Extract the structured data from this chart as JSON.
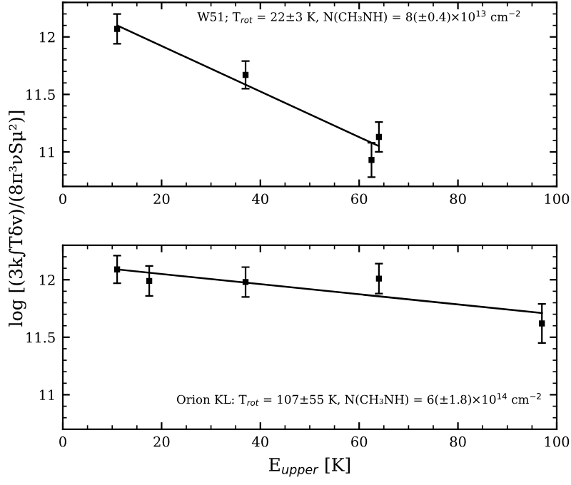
{
  "chart_data": [
    {
      "type": "scatter",
      "ylabel": "log [(3k∫Tδv)/(8π³νSμ²)]",
      "annotations": [
        "W51; T$_{rot}$ = 22±3 K, N(CH₃NH) = 8(±0.4)×10$^{13}$ cm$^{−2}$"
      ],
      "xlim": [
        0,
        100
      ],
      "xticks": [
        0,
        20,
        40,
        60,
        80,
        100
      ],
      "ylim": [
        10.7,
        12.3
      ],
      "yticks": [
        11,
        11.5,
        12
      ],
      "series": [
        {
          "marker": "square",
          "color": "#000000",
          "x": [
            11,
            37,
            62.5,
            64
          ],
          "values": [
            12.07,
            11.67,
            10.93,
            11.13
          ],
          "errors": [
            0.13,
            0.12,
            0.15,
            0.13
          ]
        },
        {
          "type": "line",
          "color": "#000000",
          "x": [
            11,
            64
          ],
          "values": [
            12.1,
            11.05
          ]
        }
      ]
    },
    {
      "type": "scatter",
      "xlabel": "E$_{upper}$ [K]",
      "annotations": [
        "Orion KL: T$_{rot}$ = 107±55 K, N(CH₃NH) = 6(±1.8)×10$^{14}$ cm$^{−2}$"
      ],
      "xlim": [
        0,
        100
      ],
      "xticks": [
        0,
        20,
        40,
        60,
        80,
        100
      ],
      "ylim": [
        10.7,
        12.3
      ],
      "yticks": [
        11,
        11.5,
        12
      ],
      "series": [
        {
          "marker": "square",
          "color": "#000000",
          "x": [
            11,
            17.5,
            37,
            64,
            97
          ],
          "values": [
            12.09,
            11.99,
            11.98,
            12.01,
            11.62
          ],
          "errors": [
            0.12,
            0.13,
            0.13,
            0.13,
            0.17
          ]
        },
        {
          "type": "line",
          "color": "#000000",
          "x": [
            11,
            97
          ],
          "values": [
            12.09,
            11.71
          ]
        }
      ]
    }
  ]
}
